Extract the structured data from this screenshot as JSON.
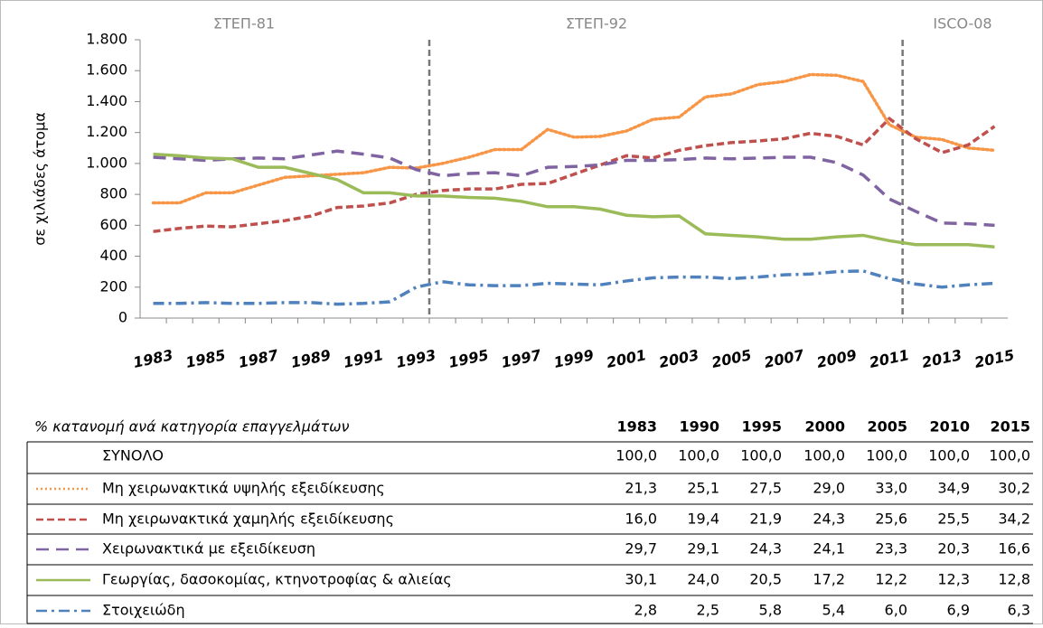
{
  "chart_data": {
    "type": "line",
    "y_label": "σε χιλιάδες άτομα",
    "periods": [
      "ΣΤΕΠ-81",
      "ΣΤΕΠ-92",
      "ISCO-08"
    ],
    "breaks": [
      1993.5,
      2011.5
    ],
    "x": [
      1983,
      1984,
      1985,
      1986,
      1987,
      1988,
      1989,
      1990,
      1991,
      1992,
      1993,
      1994,
      1995,
      1996,
      1997,
      1998,
      1999,
      2000,
      2001,
      2002,
      2003,
      2004,
      2005,
      2006,
      2007,
      2008,
      2009,
      2010,
      2011,
      2012,
      2013,
      2014,
      2015
    ],
    "xlim": [
      1982.5,
      2015.5
    ],
    "xticks": [
      1983,
      1985,
      1987,
      1989,
      1991,
      1993,
      1995,
      1997,
      1999,
      2001,
      2003,
      2005,
      2007,
      2009,
      2011,
      2013,
      2015
    ],
    "ylim": [
      0,
      1800
    ],
    "yticks": [
      0,
      200,
      400,
      600,
      800,
      {
        "value": 1000,
        "label": "1.000"
      },
      {
        "value": 1200,
        "label": "1.200"
      },
      {
        "value": 1400,
        "label": "1.400"
      },
      {
        "value": 1600,
        "label": "1.600"
      },
      {
        "value": 1800,
        "label": "1.800"
      }
    ],
    "series": [
      {
        "name": "Μη χειρωνακτικά υψηλής εξειδίκευσης",
        "color": "#f79646",
        "dash": "dotted",
        "values": [
          745,
          745,
          810,
          810,
          860,
          910,
          920,
          930,
          940,
          975,
          970,
          1000,
          1040,
          1090,
          1090,
          1220,
          1170,
          1175,
          1210,
          1285,
          1300,
          1430,
          1450,
          1510,
          1530,
          1575,
          1570,
          1530,
          1250,
          1170,
          1155,
          1100,
          1085
        ]
      },
      {
        "name": "Μη χειρωνακτικά χαμηλής εξειδίκευσης",
        "color": "#c0504d",
        "dash": "dashed",
        "values": [
          560,
          580,
          595,
          590,
          610,
          630,
          660,
          715,
          725,
          745,
          800,
          825,
          835,
          835,
          865,
          870,
          930,
          990,
          1050,
          1035,
          1085,
          1115,
          1135,
          1145,
          1160,
          1195,
          1175,
          1120,
          1290,
          1160,
          1070,
          1120,
          1240
        ]
      },
      {
        "name": "Χειρωνακτικά με εξειδίκευση",
        "color": "#8064a2",
        "dash": "longdash",
        "values": [
          1040,
          1030,
          1020,
          1030,
          1035,
          1030,
          1055,
          1080,
          1060,
          1035,
          960,
          920,
          935,
          940,
          920,
          975,
          980,
          990,
          1020,
          1020,
          1025,
          1035,
          1030,
          1035,
          1040,
          1040,
          1005,
          925,
          770,
          690,
          615,
          610,
          600
        ]
      },
      {
        "name": "Γεωργίας, δασοκομίας, κτηνοτροφίας & αλιείας",
        "color": "#9bbb59",
        "dash": "solid",
        "values": [
          1060,
          1050,
          1035,
          1030,
          975,
          975,
          935,
          895,
          810,
          810,
          790,
          790,
          780,
          775,
          755,
          720,
          720,
          705,
          665,
          655,
          660,
          545,
          535,
          525,
          510,
          510,
          525,
          535,
          500,
          475,
          475,
          475,
          460
        ]
      },
      {
        "name": "Στοιχειώδη",
        "color": "#4f81bd",
        "dash": "dashdot",
        "values": [
          95,
          95,
          100,
          95,
          95,
          100,
          100,
          90,
          95,
          105,
          200,
          235,
          215,
          210,
          210,
          225,
          220,
          215,
          240,
          260,
          265,
          265,
          255,
          265,
          280,
          285,
          300,
          305,
          255,
          220,
          200,
          215,
          225
        ]
      }
    ]
  },
  "table": {
    "title": "% κατανομή ανά κατηγορία επαγγελμάτων",
    "columns": [
      "1983",
      "1990",
      "1995",
      "2000",
      "2005",
      "2010",
      "2015"
    ],
    "total": {
      "label": "ΣΥΝΟΛΟ",
      "values": [
        "100,0",
        "100,0",
        "100,0",
        "100,0",
        "100,0",
        "100,0",
        "100,0"
      ]
    },
    "rows": [
      [
        "21,3",
        "25,1",
        "27,5",
        "29,0",
        "33,0",
        "34,9",
        "30,2"
      ],
      [
        "16,0",
        "19,4",
        "21,9",
        "24,3",
        "25,6",
        "25,5",
        "34,2"
      ],
      [
        "29,7",
        "29,1",
        "24,3",
        "24,1",
        "23,3",
        "20,3",
        "16,6"
      ],
      [
        "30,1",
        "24,0",
        "20,5",
        "17,2",
        "12,2",
        "12,3",
        "12,8"
      ],
      [
        "2,8",
        "2,5",
        "5,8",
        "5,4",
        "6,0",
        "6,9",
        "6,3"
      ]
    ]
  }
}
